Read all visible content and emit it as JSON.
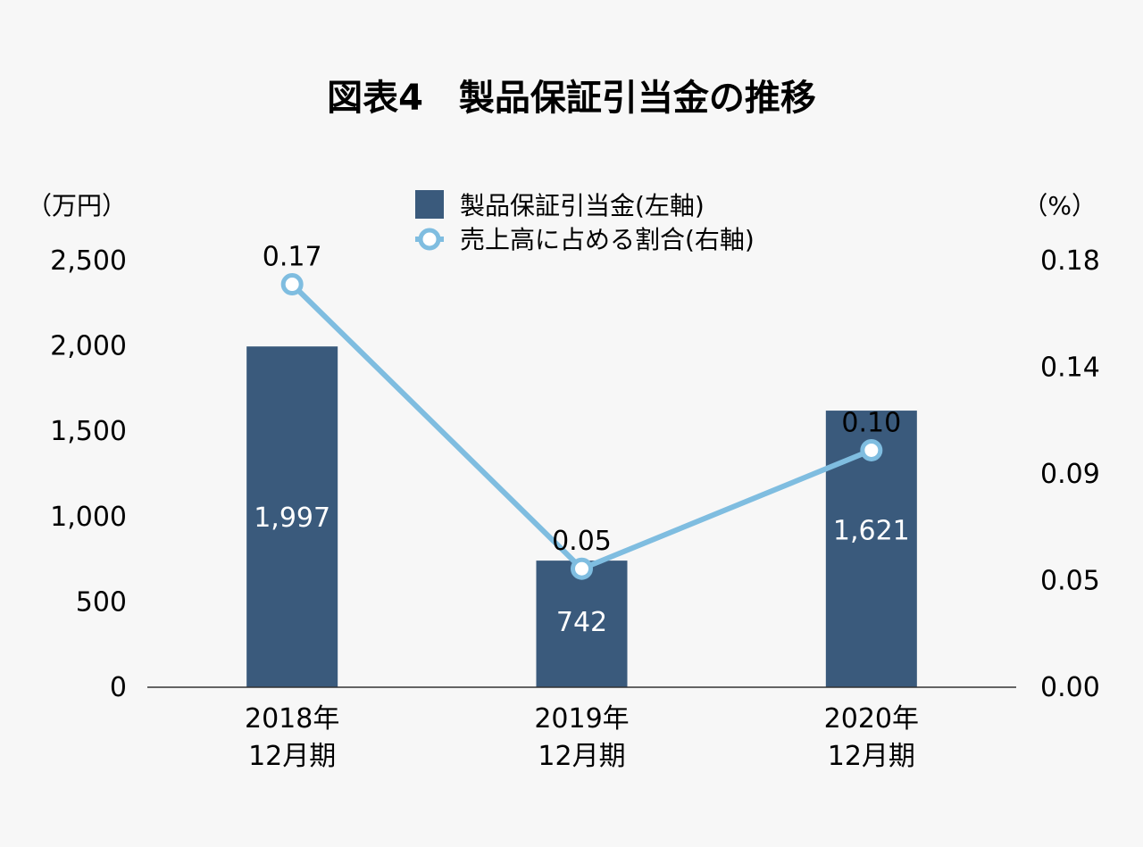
{
  "chart_data": {
    "type": "bar",
    "title": "図表4　製品保証引当金の推移",
    "left_axis_unit": "（万円）",
    "right_axis_unit": "（%）",
    "categories": [
      [
        "2018年",
        "12月期"
      ],
      [
        "2019年",
        "12月期"
      ],
      [
        "2020年",
        "12月期"
      ]
    ],
    "y_left_ticks": [
      "0",
      "500",
      "1,000",
      "1,500",
      "2,000",
      "2,500"
    ],
    "y_right_ticks": [
      "0.00",
      "0.05",
      "0.09",
      "0.14",
      "0.18"
    ],
    "ylim_left": [
      0,
      2500
    ],
    "ylim_right": [
      0,
      0.18
    ],
    "series": [
      {
        "name": "製品保証引当金(左軸)",
        "type": "bar",
        "axis": "left",
        "values": [
          1997,
          742,
          1621
        ],
        "labels": [
          "1,997",
          "742",
          "1,621"
        ],
        "color": "#3a5a7c"
      },
      {
        "name": "売上高に占める割合(右軸)",
        "type": "line",
        "axis": "right",
        "values": [
          0.17,
          0.05,
          0.1
        ],
        "labels": [
          "0.17",
          "0.05",
          "0.10"
        ],
        "color": "#7fbde0"
      }
    ],
    "legend_position": "top-center",
    "grid": false
  }
}
